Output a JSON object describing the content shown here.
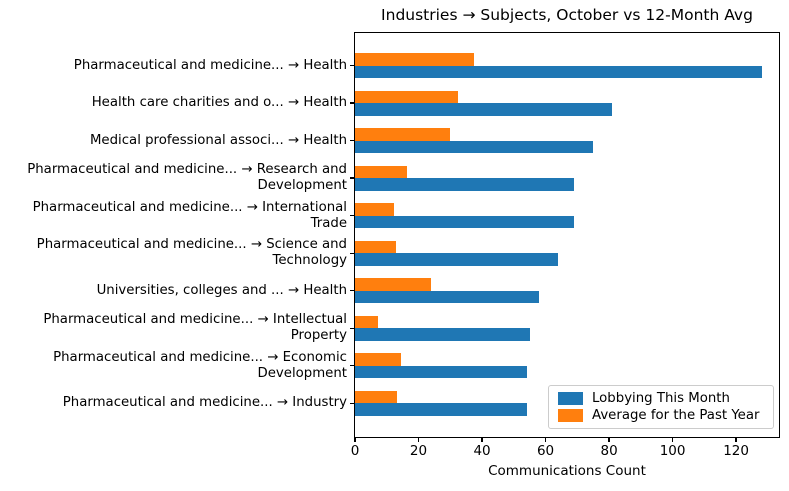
{
  "chart_data": {
    "type": "bar",
    "orientation": "horizontal",
    "title": "Industries → Subjects, October vs 12-Month Avg",
    "xlabel": "Communications Count",
    "ylabel": "",
    "xlim": [
      0,
      133.5
    ],
    "xticks": [
      0,
      20,
      40,
      60,
      80,
      100,
      120
    ],
    "grid": false,
    "legend_position": "lower right",
    "categories": [
      "Pharmaceutical and medicine... → Health",
      "Health care charities and o... → Health",
      "Medical professional associ... → Health",
      "Pharmaceutical and medicine... → Research and\nDevelopment",
      "Pharmaceutical and medicine... → International\nTrade",
      "Pharmaceutical and medicine... → Science and\nTechnology",
      "Universities, colleges and ... → Health",
      "Pharmaceutical and medicine... → Intellectual\nProperty",
      "Pharmaceutical and medicine... → Economic\nDevelopment",
      "Pharmaceutical and medicine... → Industry"
    ],
    "series": [
      {
        "name": "Lobbying This Month",
        "color": "#1f77b4",
        "values": [
          128,
          81,
          75,
          69,
          69,
          64,
          58,
          55,
          54,
          54
        ]
      },
      {
        "name": "Average for the Past Year",
        "color": "#ff7f0e",
        "values": [
          37.5,
          32.3,
          29.8,
          16.4,
          12.3,
          12.9,
          23.9,
          7.3,
          14.5,
          13.3
        ]
      }
    ]
  }
}
